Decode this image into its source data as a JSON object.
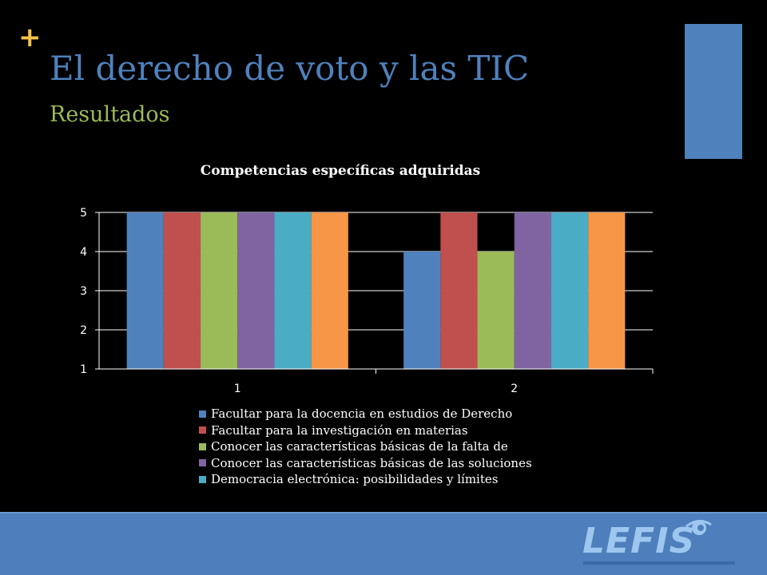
{
  "slide": {
    "plus_glyph": "+",
    "title": "El derecho de voto y las TIC",
    "subtitle": "Resultados",
    "logo_text": "LEFIS"
  },
  "colors": {
    "background": "#000000",
    "title": "#4f81bd",
    "subtitle": "#9bbb59",
    "plus": "#f5c24a",
    "accent_bar": "#4f81bd",
    "footer": "#4e7fbc"
  },
  "chart_data": {
    "type": "bar",
    "title": "Competencias específicas adquiridas",
    "xlabel": "",
    "ylabel": "",
    "categories": [
      "1",
      "2"
    ],
    "ylim": [
      1,
      5
    ],
    "yticks": [
      "1",
      "2",
      "3",
      "4",
      "5"
    ],
    "grid": true,
    "legend_position": "bottom",
    "series": [
      {
        "name": "Facultar para la docencia en estudios de Derecho",
        "color": "#4f81bd",
        "values": [
          5,
          4
        ]
      },
      {
        "name": "Facultar para la investigación en materias",
        "color": "#c0504d",
        "values": [
          5,
          5
        ]
      },
      {
        "name": "Conocer las características básicas de la falta de",
        "color": "#9bbb59",
        "values": [
          5,
          4
        ]
      },
      {
        "name": "Conocer las características básicas de las soluciones",
        "color": "#8064a2",
        "values": [
          5,
          5
        ]
      },
      {
        "name": "Democracia electrónica: posibilidades y límites",
        "color": "#4bacc6",
        "values": [
          5,
          5
        ]
      },
      {
        "name": "",
        "color": "#f79646",
        "values": [
          5,
          5
        ]
      }
    ]
  }
}
